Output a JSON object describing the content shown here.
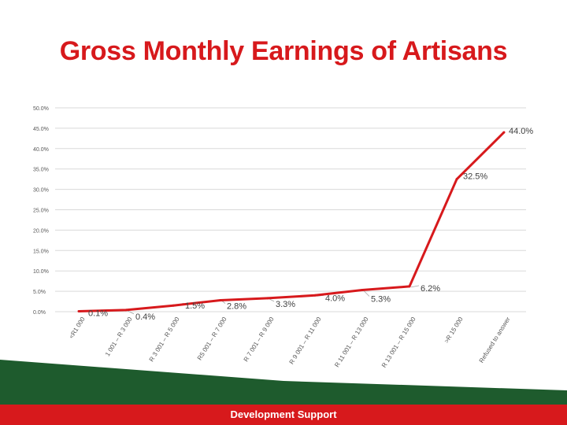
{
  "title": "Gross Monthly Earnings of Artisans",
  "footer": {
    "label": "Development Support"
  },
  "colors": {
    "line": "#d7191c",
    "title": "#d7191c",
    "grid": "#d9d9d9",
    "footer_green": "#1e5b2d",
    "footer_red": "#d7191c"
  },
  "chart_data": {
    "type": "line",
    "title": "Gross Monthly Earnings of Artisans",
    "xlabel": "",
    "ylabel": "",
    "categories": [
      "<R1 000",
      "1 001 – R 3 000",
      "R 3 001 – R 5 000",
      "R5 001 – R 7 000",
      "R 7 001 – R 9 000",
      "R 9 001 – R 11 000",
      "R 11 001 – R 13 000",
      "R 13 001 – R 15 000",
      ">R 15 000",
      "Refused to answer"
    ],
    "values": [
      0.1,
      0.4,
      1.5,
      2.8,
      3.3,
      4.0,
      5.3,
      6.2,
      32.5,
      44.0
    ],
    "data_labels": [
      "0.1%",
      "0.4%",
      "1.5%",
      "2.8%",
      "3.3%",
      "4.0%",
      "5.3%",
      "6.2%",
      "32.5%",
      "44.0%"
    ],
    "yticks": [
      "0.0%",
      "5.0%",
      "10.0%",
      "15.0%",
      "20.0%",
      "25.0%",
      "30.0%",
      "35.0%",
      "40.0%",
      "45.0%",
      "50.0%"
    ],
    "ylim": [
      0,
      50
    ],
    "grid": true,
    "legend": "none"
  }
}
